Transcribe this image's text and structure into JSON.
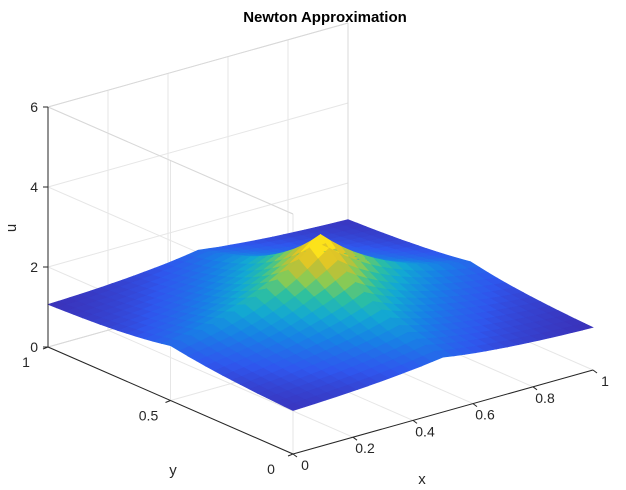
{
  "chart_data": {
    "type": "surface",
    "title": "Newton Approximation",
    "xlabel": "x",
    "ylabel": "y",
    "zlabel": "u",
    "xlim": [
      0,
      1
    ],
    "ylim": [
      0,
      1
    ],
    "zlim": [
      0,
      6
    ],
    "x_ticks": [
      "0",
      "0.2",
      "0.4",
      "0.6",
      "0.8",
      "1"
    ],
    "y_ticks": [
      "0",
      "0.5",
      "1"
    ],
    "z_ticks": [
      "0",
      "2",
      "4",
      "6"
    ],
    "grid": true,
    "colormap": [
      "#3e26a8",
      "#2f57ee",
      "#1782e5",
      "#13a8d3",
      "#2ec09f",
      "#8ccb52",
      "#d4bc2b",
      "#fcde1c",
      "#f9fb15"
    ],
    "surface": {
      "description_points": [
        {
          "x": 0,
          "y": 0,
          "u": 1.0
        },
        {
          "x": 1,
          "y": 1,
          "u": 1.0
        },
        {
          "x": 0,
          "y": 1,
          "u": 1.0
        },
        {
          "x": 1,
          "y": 0,
          "u": 1.0
        },
        {
          "x": 0.5,
          "y": 0.5,
          "u": 3.1
        }
      ]
    }
  }
}
